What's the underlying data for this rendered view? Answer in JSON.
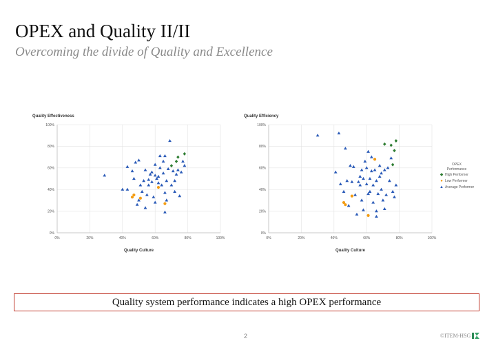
{
  "header": {
    "title": "OPEX and Quality II/II",
    "subtitle": "Overcoming the divide of Quality and Excellence"
  },
  "colors": {
    "high": "#2e7d32",
    "low": "#f39c12",
    "average": "#2b5bb8",
    "grid": "#e3e3e3",
    "callout_border": "#c0392b"
  },
  "legend": {
    "title_line1": "OPEX",
    "title_line2": "Performance",
    "items": [
      {
        "key": "high",
        "label": "High Performer",
        "marker": "diamond"
      },
      {
        "key": "low",
        "label": "Low Performer",
        "marker": "circle"
      },
      {
        "key": "average",
        "label": "Average Performer",
        "marker": "triangle"
      }
    ]
  },
  "chart_data": [
    {
      "type": "scatter",
      "title": "",
      "ylabel": "Quality Effectiveness",
      "xlabel": "Quality Culture",
      "xlim": [
        0,
        100
      ],
      "ylim": [
        0,
        100
      ],
      "xticks": [
        "0%",
        "20%",
        "40%",
        "60%",
        "80%",
        "100%"
      ],
      "yticks": [
        "0%",
        "20%",
        "40%",
        "60%",
        "80%",
        "100%"
      ],
      "grid": true,
      "series": [
        {
          "key": "high",
          "points": [
            [
              70,
              62
            ],
            [
              73,
              66
            ],
            [
              74,
              70
            ],
            [
              78,
              73
            ]
          ]
        },
        {
          "key": "low",
          "points": [
            [
              46,
              33
            ],
            [
              47,
              35
            ],
            [
              51,
              32
            ],
            [
              62,
              42
            ],
            [
              66,
              27
            ]
          ]
        },
        {
          "key": "average",
          "points": [
            [
              29,
              53
            ],
            [
              40,
              40
            ],
            [
              43,
              40
            ],
            [
              43,
              61
            ],
            [
              46,
              57
            ],
            [
              47,
              50
            ],
            [
              48,
              65
            ],
            [
              49,
              26
            ],
            [
              50,
              30
            ],
            [
              50,
              67
            ],
            [
              51,
              44
            ],
            [
              52,
              38
            ],
            [
              53,
              48
            ],
            [
              54,
              23
            ],
            [
              54,
              58
            ],
            [
              55,
              35
            ],
            [
              56,
              44
            ],
            [
              57,
              54
            ],
            [
              58,
              47
            ],
            [
              58,
              56
            ],
            [
              59,
              33
            ],
            [
              60,
              53
            ],
            [
              60,
              63
            ],
            [
              61,
              50
            ],
            [
              62,
              46
            ],
            [
              62,
              52
            ],
            [
              63,
              60
            ],
            [
              63,
              71
            ],
            [
              64,
              44
            ],
            [
              65,
              55
            ],
            [
              65,
              66
            ],
            [
              66,
              71
            ],
            [
              66,
              37
            ],
            [
              67,
              30
            ],
            [
              66,
              19
            ],
            [
              68,
              59
            ],
            [
              69,
              85
            ],
            [
              70,
              44
            ],
            [
              71,
              57
            ],
            [
              72,
              48
            ],
            [
              73,
              54
            ],
            [
              74,
              58
            ],
            [
              75,
              34
            ],
            [
              76,
              56
            ],
            [
              77,
              66
            ],
            [
              78,
              62
            ],
            [
              72,
              38
            ],
            [
              60,
              28
            ],
            [
              56,
              49
            ],
            [
              67,
              48
            ]
          ]
        }
      ]
    },
    {
      "type": "scatter",
      "title": "",
      "ylabel": "Quality Efficiency",
      "xlabel": "Quality Culture",
      "xlim": [
        0,
        100
      ],
      "ylim": [
        0,
        100
      ],
      "xticks": [
        "0%",
        "20%",
        "40%",
        "60%",
        "80%",
        "100%"
      ],
      "yticks": [
        "0%",
        "20%",
        "40%",
        "60%",
        "80%",
        "100%"
      ],
      "grid": true,
      "series": [
        {
          "key": "high",
          "points": [
            [
              71,
              82
            ],
            [
              75,
              81
            ],
            [
              77,
              76
            ],
            [
              78,
              85
            ],
            [
              76,
              63
            ]
          ]
        },
        {
          "key": "low",
          "points": [
            [
              46,
              28
            ],
            [
              47,
              26
            ],
            [
              51,
              34
            ],
            [
              61,
              16
            ],
            [
              65,
              68
            ]
          ]
        },
        {
          "key": "average",
          "points": [
            [
              30,
              90
            ],
            [
              41,
              56
            ],
            [
              43,
              92
            ],
            [
              44,
              45
            ],
            [
              46,
              38
            ],
            [
              47,
              78
            ],
            [
              48,
              48
            ],
            [
              49,
              25
            ],
            [
              50,
              62
            ],
            [
              51,
              47
            ],
            [
              52,
              61
            ],
            [
              53,
              35
            ],
            [
              54,
              17
            ],
            [
              55,
              47
            ],
            [
              56,
              44
            ],
            [
              57,
              58
            ],
            [
              57,
              30
            ],
            [
              58,
              21
            ],
            [
              58,
              50
            ],
            [
              59,
              66
            ],
            [
              60,
              60
            ],
            [
              61,
              75
            ],
            [
              61,
              36
            ],
            [
              62,
              38
            ],
            [
              62,
              50
            ],
            [
              63,
              70
            ],
            [
              63,
              57
            ],
            [
              64,
              44
            ],
            [
              64,
              28
            ],
            [
              65,
              58
            ],
            [
              66,
              48
            ],
            [
              66,
              20
            ],
            [
              67,
              36
            ],
            [
              68,
              62
            ],
            [
              68,
              52
            ],
            [
              69,
              40
            ],
            [
              70,
              30
            ],
            [
              71,
              58
            ],
            [
              71,
              22
            ],
            [
              72,
              35
            ],
            [
              73,
              60
            ],
            [
              74,
              48
            ],
            [
              75,
              69
            ],
            [
              76,
              38
            ],
            [
              77,
              33
            ],
            [
              78,
              44
            ],
            [
              60,
              45
            ],
            [
              66,
              15
            ],
            [
              56,
              52
            ],
            [
              69,
              55
            ]
          ]
        }
      ]
    }
  ],
  "callout": {
    "text": "Quality system performance indicates a high OPEX performance"
  },
  "footer": {
    "page_number": "2",
    "copyright": "©ITEM-HSG"
  }
}
